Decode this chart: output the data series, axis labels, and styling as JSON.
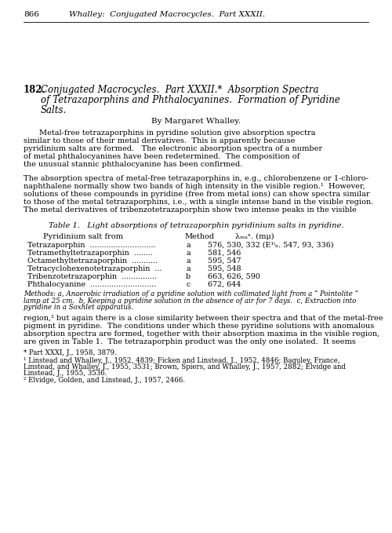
{
  "bg_color": "#ffffff",
  "header_page": "866",
  "header_title": "Whalley:  Conjugated Macrocycles.  Part XXXII.",
  "article_number": "182.",
  "article_title_line1": "Conjugated Macrocycles.  Part XXXII.*  Absorption Spectra",
  "article_title_line2": "of Tetrazaporphins and Phthalocyanines.  Formation of Pyridine",
  "article_title_line3": "Salts.",
  "byline": "By Margaret Whalley.",
  "abstract_indent_line": "Metal-free tetrazaporphins in pyridine solution give absorption spectra",
  "abstract_lines": [
    "similar to those of their metal derivatives.  This is apparently because",
    "pyridinium salts are formed.   The electronic absorption spectra of a number",
    "of metal phthalocyanines have been redetermined.  The composition of",
    "the unusual stannic phthalocyanine has been confirmed."
  ],
  "body_lines": [
    "The absorption spectra of metal-free tetrazaporphins in, e.g., chlorobenzene or 1-chloro-",
    "naphthalene normally show two bands of high intensity in the visible region.¹  However,",
    "solutions of these compounds in pyridine (free from metal ions) can show spectra similar",
    "to those of the metal tetrazaporphins, i.e., with a single intense band in the visible region.",
    "The metal derivatives of tribenzotetrazaporphin show two intense peaks in the visible"
  ],
  "table_title_roman": "Table 1.",
  "table_title_italic": "  Light absorptions of tetrazaporphin pyridinium salts in pyridine.",
  "table_col1_header": "Pyridinium salt from",
  "table_col2_header": "Method",
  "table_col3_header": "λₘₐˣ. (mμ)",
  "table_rows": [
    [
      "Tetrazaporphin  ............................",
      "a",
      "576, 530, 332 (E¹ⁱₙ. 547, 93, 336)"
    ],
    [
      "Tetramethyltetrazaporphin  ........",
      "a",
      "581, 546"
    ],
    [
      "Octamethyltetrazaporphin  ...........",
      "a",
      "595, 547"
    ],
    [
      "Tetracyclohexenotetrazaporphin  ...",
      "a",
      "595, 548"
    ],
    [
      "Tribenzotetrazaporphin  ...............",
      "b",
      "663, 626, 590"
    ],
    [
      "Phthalocyanine  ............................",
      "c",
      "672, 644"
    ]
  ],
  "methods_lines": [
    "Methods: a, Anaerobic irradiation of a pyridine solution with collimated light from a “ Pointolite ”",
    "lamp at 25 cm.  b, Keeping a pyridine solution in the absence of air for 7 days.  c, Extraction into",
    "pyridine in a Soxhlet apparatus."
  ],
  "footnote_star": "* Part XXXI, J., 1958, 3879.",
  "footnote1_lines": [
    "¹ Linstead and Whalley, J., 1952, 4839; Ficken and Linstead, J., 1952, 4846; Baguley, France,",
    "Linstead, and Whalley, J., 1955, 3531; Brown, Spiers, and Whalley, J., 1957, 2882; Elvidge and",
    "Linstead, J., 1955, 3536."
  ],
  "footnote2": "² Elvidge, Golden, and Linstead, J., 1957, 2466.",
  "body_para2_lines": [
    "region,² but again there is a close similarity between their spectra and that of the metal-free",
    "pigment in pyridine.  The conditions under which these pyridine solutions with anomalous",
    "absorption spectra are formed, together with their absorption maxima in the visible region,",
    "are given in Table 1.  The tetrazaporphin product was the only one isolated.  It seems"
  ]
}
